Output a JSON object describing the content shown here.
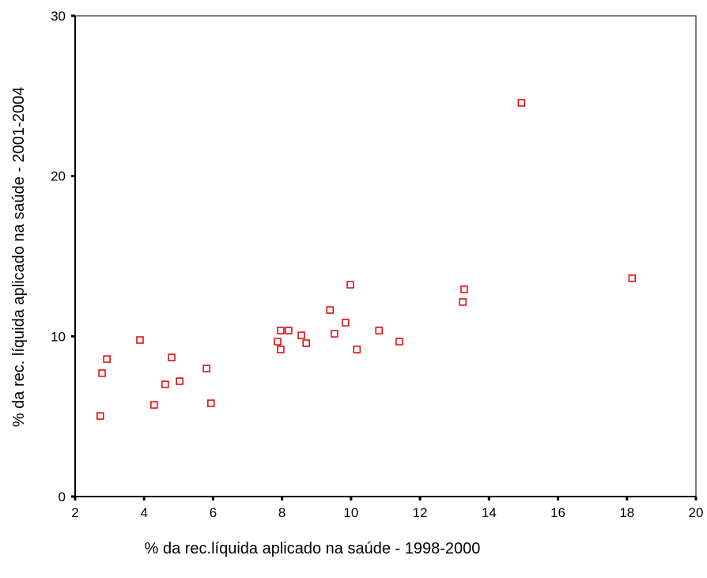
{
  "chart_data": {
    "type": "scatter",
    "xlabel": "% da rec.líquida aplicado na saúde - 1998-2000",
    "ylabel": "% da rec. líquida aplicado na saúde - 2001-2004",
    "color": "#e00000",
    "x": [
      2.73,
      2.78,
      2.92,
      3.88,
      4.29,
      4.61,
      4.8,
      5.03,
      5.81,
      5.94,
      7.87,
      7.96,
      7.96,
      8.19,
      8.56,
      8.7,
      9.39,
      9.52,
      9.84,
      9.98,
      10.17,
      10.81,
      11.4,
      13.24,
      13.28,
      14.94,
      18.15
    ],
    "values": [
      5.03,
      7.7,
      8.58,
      9.77,
      5.72,
      7.0,
      8.68,
      7.2,
      7.99,
      5.82,
      9.67,
      10.36,
      9.18,
      10.36,
      10.06,
      9.57,
      11.64,
      10.16,
      10.85,
      13.22,
      9.18,
      10.36,
      9.67,
      12.14,
      12.93,
      24.57,
      13.62
    ],
    "xlim": [
      2,
      20
    ],
    "xticks": [
      2,
      4,
      6,
      8,
      10,
      12,
      14,
      16,
      18,
      20
    ],
    "ylim": [
      0,
      30
    ],
    "yticks": [
      0,
      10,
      20,
      30
    ]
  }
}
